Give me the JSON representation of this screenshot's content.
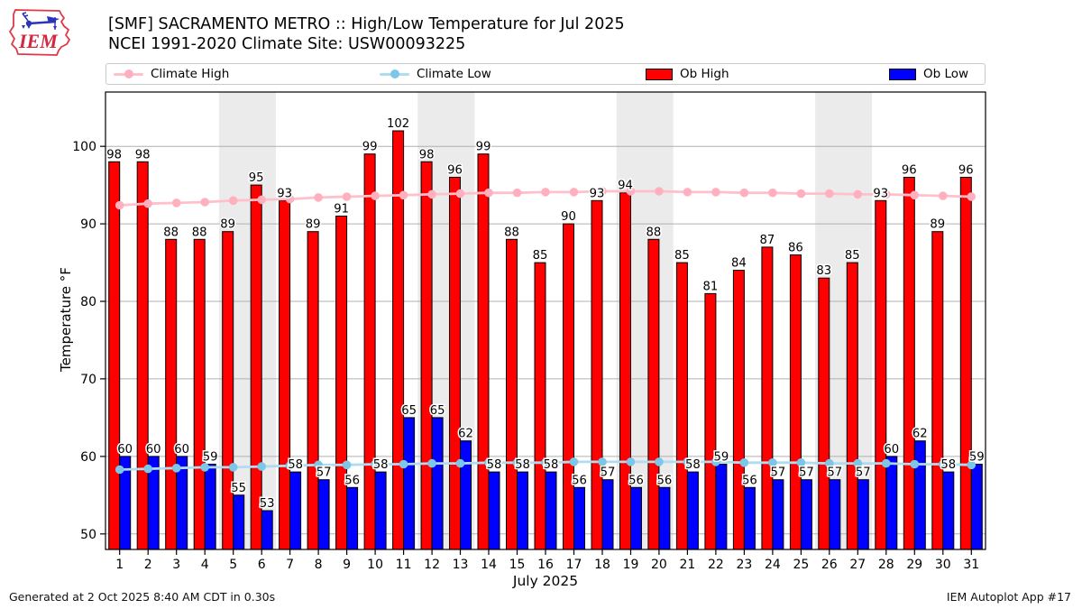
{
  "header": {
    "title": "[SMF] SACRAMENTO METRO :: High/Low Temperature for Jul 2025",
    "subtitle": "NCEI 1991-2020 Climate Site: USW00093225",
    "logo_text": "IEM"
  },
  "legend": {
    "items": [
      {
        "label": "Climate High",
        "type": "line",
        "line_color": "#ffc0cb",
        "marker_color": "#ffb0bf"
      },
      {
        "label": "Climate Low",
        "type": "line",
        "line_color": "#b0dcf0",
        "marker_color": "#7cc6e8"
      },
      {
        "label": "Ob High",
        "type": "patch",
        "color": "#ff0000"
      },
      {
        "label": "Ob Low",
        "type": "patch",
        "color": "#0000ff"
      }
    ]
  },
  "footer": {
    "left": "Generated at 2 Oct 2025 8:40 AM CDT in 0.30s",
    "right": "IEM Autoplot App #17"
  },
  "chart_data": {
    "type": "bar",
    "title": "[SMF] SACRAMENTO METRO :: High/Low Temperature for Jul 2025",
    "subtitle": "NCEI 1991-2020 Climate Site: USW00093225",
    "xlabel": "July 2025",
    "ylabel": "Temperature °F",
    "ylim": [
      48,
      107
    ],
    "yticks": [
      50,
      60,
      70,
      80,
      90,
      100
    ],
    "grid": true,
    "grid_color": "#b0b0b0",
    "band_color": "#ebebeb",
    "weekend_bands": [
      [
        5,
        6
      ],
      [
        12,
        13
      ],
      [
        19,
        20
      ],
      [
        26,
        27
      ]
    ],
    "categories": [
      1,
      2,
      3,
      4,
      5,
      6,
      7,
      8,
      9,
      10,
      11,
      12,
      13,
      14,
      15,
      16,
      17,
      18,
      19,
      20,
      21,
      22,
      23,
      24,
      25,
      26,
      27,
      28,
      29,
      30,
      31
    ],
    "series": [
      {
        "name": "Ob High",
        "type": "bar",
        "color": "#ff0000",
        "edge_color": "#000000",
        "values": [
          98,
          98,
          88,
          88,
          89,
          95,
          93,
          89,
          91,
          99,
          102,
          98,
          96,
          99,
          88,
          85,
          90,
          93,
          94,
          88,
          85,
          81,
          84,
          87,
          86,
          83,
          85,
          93,
          96,
          89,
          96
        ]
      },
      {
        "name": "Ob Low",
        "type": "bar",
        "color": "#0000ff",
        "edge_color": "#000000",
        "values": [
          60,
          60,
          60,
          59,
          55,
          53,
          58,
          57,
          56,
          58,
          65,
          65,
          62,
          58,
          58,
          58,
          56,
          57,
          56,
          56,
          58,
          59,
          56,
          57,
          57,
          57,
          57,
          60,
          62,
          58,
          59
        ]
      },
      {
        "name": "Climate High",
        "type": "line",
        "color": "#ffc0cb",
        "marker_color": "#ffb0bf",
        "values": [
          92.4,
          92.6,
          92.7,
          92.8,
          93.0,
          93.1,
          93.2,
          93.4,
          93.5,
          93.6,
          93.7,
          93.8,
          93.9,
          94.0,
          94.0,
          94.1,
          94.1,
          94.2,
          94.2,
          94.2,
          94.1,
          94.1,
          94.0,
          94.0,
          93.9,
          93.9,
          93.8,
          93.8,
          93.7,
          93.6,
          93.5
        ]
      },
      {
        "name": "Climate Low",
        "type": "line",
        "color": "#b0dcf0",
        "marker_color": "#7cc6e8",
        "values": [
          58.3,
          58.4,
          58.5,
          58.6,
          58.6,
          58.7,
          58.8,
          58.9,
          58.9,
          59.0,
          59.0,
          59.1,
          59.1,
          59.2,
          59.2,
          59.2,
          59.3,
          59.3,
          59.3,
          59.3,
          59.3,
          59.3,
          59.2,
          59.2,
          59.2,
          59.1,
          59.1,
          59.1,
          59.0,
          59.0,
          58.9
        ]
      }
    ]
  }
}
